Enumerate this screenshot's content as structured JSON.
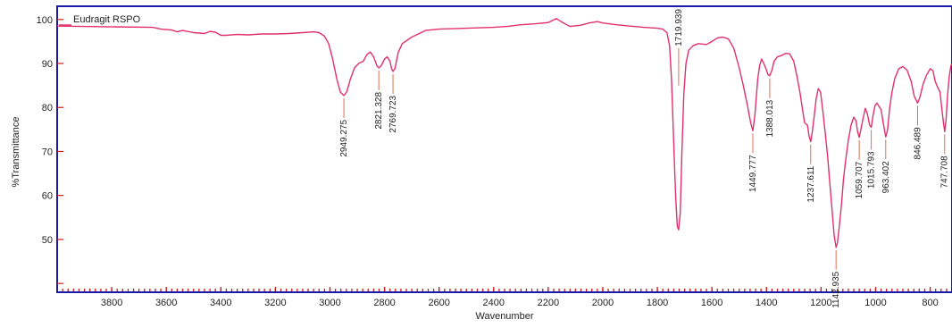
{
  "chart_data": {
    "type": "line",
    "title": "",
    "xlabel": "Wavenumber",
    "ylabel": "%Transmittance",
    "xlim": [
      4000,
      720
    ],
    "ylim": [
      38,
      103
    ],
    "x_ticks": [
      3800,
      3600,
      3400,
      3200,
      3000,
      2800,
      2600,
      2400,
      2200,
      2000,
      1800,
      1600,
      1400,
      1200,
      1000,
      800
    ],
    "y_ticks": [
      50,
      60,
      70,
      80,
      90,
      100
    ],
    "grid": false,
    "legend": "top-left",
    "series": [
      {
        "name": "Eudragit RSPO",
        "color": "#e0306e",
        "points": [
          [
            4000,
            98.5
          ],
          [
            3990,
            98.5
          ],
          [
            3650,
            98.2
          ],
          [
            3620,
            97.8
          ],
          [
            3580,
            97.6
          ],
          [
            3560,
            97.2
          ],
          [
            3540,
            97.5
          ],
          [
            3500,
            97.0
          ],
          [
            3460,
            96.8
          ],
          [
            3440,
            97.3
          ],
          [
            3420,
            97.1
          ],
          [
            3400,
            96.4
          ],
          [
            3380,
            96.4
          ],
          [
            3340,
            96.6
          ],
          [
            3300,
            96.5
          ],
          [
            3250,
            96.7
          ],
          [
            3200,
            96.7
          ],
          [
            3150,
            96.8
          ],
          [
            3100,
            97.0
          ],
          [
            3060,
            97.2
          ],
          [
            3040,
            97.0
          ],
          [
            3020,
            96.2
          ],
          [
            3005,
            94.5
          ],
          [
            2990,
            91.0
          ],
          [
            2975,
            86.5
          ],
          [
            2962,
            83.5
          ],
          [
            2949,
            82.7
          ],
          [
            2938,
            83.6
          ],
          [
            2925,
            86.5
          ],
          [
            2910,
            89.0
          ],
          [
            2895,
            90.0
          ],
          [
            2878,
            90.5
          ],
          [
            2865,
            92.0
          ],
          [
            2852,
            92.6
          ],
          [
            2840,
            91.5
          ],
          [
            2828,
            89.5
          ],
          [
            2821,
            89.0
          ],
          [
            2812,
            89.5
          ],
          [
            2800,
            91.0
          ],
          [
            2790,
            91.5
          ],
          [
            2780,
            90.5
          ],
          [
            2774,
            88.8
          ],
          [
            2769,
            88.2
          ],
          [
            2762,
            88.8
          ],
          [
            2750,
            92.5
          ],
          [
            2735,
            94.5
          ],
          [
            2700,
            96.0
          ],
          [
            2650,
            97.5
          ],
          [
            2600,
            97.8
          ],
          [
            2550,
            97.9
          ],
          [
            2500,
            98.0
          ],
          [
            2450,
            98.1
          ],
          [
            2400,
            98.2
          ],
          [
            2350,
            98.4
          ],
          [
            2300,
            98.8
          ],
          [
            2250,
            99.0
          ],
          [
            2200,
            99.3
          ],
          [
            2170,
            100.2
          ],
          [
            2150,
            99.4
          ],
          [
            2120,
            98.4
          ],
          [
            2080,
            98.7
          ],
          [
            2050,
            99.2
          ],
          [
            2020,
            99.5
          ],
          [
            2000,
            99.2
          ],
          [
            1950,
            98.8
          ],
          [
            1900,
            98.5
          ],
          [
            1850,
            98.2
          ],
          [
            1800,
            98.0
          ],
          [
            1780,
            97.8
          ],
          [
            1765,
            97.0
          ],
          [
            1755,
            94.0
          ],
          [
            1748,
            86.0
          ],
          [
            1740,
            72.0
          ],
          [
            1733,
            60.0
          ],
          [
            1727,
            53.0
          ],
          [
            1722,
            52.2
          ],
          [
            1716,
            56.0
          ],
          [
            1710,
            70.0
          ],
          [
            1703,
            83.0
          ],
          [
            1695,
            90.0
          ],
          [
            1685,
            93.0
          ],
          [
            1670,
            94.0
          ],
          [
            1650,
            94.5
          ],
          [
            1620,
            94.3
          ],
          [
            1600,
            95.0
          ],
          [
            1580,
            95.8
          ],
          [
            1560,
            96.0
          ],
          [
            1540,
            95.6
          ],
          [
            1520,
            93.5
          ],
          [
            1500,
            89.0
          ],
          [
            1485,
            85.0
          ],
          [
            1470,
            80.5
          ],
          [
            1458,
            76.5
          ],
          [
            1450,
            74.7
          ],
          [
            1442,
            78.5
          ],
          [
            1432,
            86.5
          ],
          [
            1425,
            89.5
          ],
          [
            1418,
            91.0
          ],
          [
            1410,
            90.0
          ],
          [
            1400,
            88.5
          ],
          [
            1395,
            87.5
          ],
          [
            1388,
            87.2
          ],
          [
            1380,
            88.5
          ],
          [
            1372,
            90.5
          ],
          [
            1360,
            91.5
          ],
          [
            1345,
            91.8
          ],
          [
            1330,
            92.3
          ],
          [
            1315,
            92.2
          ],
          [
            1300,
            90.5
          ],
          [
            1288,
            87.0
          ],
          [
            1276,
            83.0
          ],
          [
            1268,
            79.5
          ],
          [
            1260,
            76.5
          ],
          [
            1250,
            76.0
          ],
          [
            1244,
            73.5
          ],
          [
            1238,
            72.2
          ],
          [
            1232,
            74.5
          ],
          [
            1225,
            78.0
          ],
          [
            1218,
            82.0
          ],
          [
            1210,
            84.3
          ],
          [
            1202,
            83.5
          ],
          [
            1193,
            79.0
          ],
          [
            1185,
            74.5
          ],
          [
            1176,
            69.0
          ],
          [
            1168,
            63.0
          ],
          [
            1160,
            57.0
          ],
          [
            1152,
            51.0
          ],
          [
            1145,
            48.2
          ],
          [
            1140,
            49.2
          ],
          [
            1133,
            53.0
          ],
          [
            1125,
            58.0
          ],
          [
            1118,
            63.5
          ],
          [
            1110,
            68.0
          ],
          [
            1100,
            72.5
          ],
          [
            1090,
            76.0
          ],
          [
            1080,
            77.8
          ],
          [
            1072,
            77.0
          ],
          [
            1066,
            74.5
          ],
          [
            1060,
            73.2
          ],
          [
            1054,
            75.0
          ],
          [
            1046,
            77.5
          ],
          [
            1038,
            79.8
          ],
          [
            1030,
            78.5
          ],
          [
            1022,
            76.0
          ],
          [
            1016,
            75.5
          ],
          [
            1010,
            78.0
          ],
          [
            1002,
            80.5
          ],
          [
            995,
            81.0
          ],
          [
            988,
            80.3
          ],
          [
            980,
            79.5
          ],
          [
            972,
            76.5
          ],
          [
            963,
            73.3
          ],
          [
            956,
            75.0
          ],
          [
            948,
            80.0
          ],
          [
            940,
            83.5
          ],
          [
            930,
            86.5
          ],
          [
            915,
            88.8
          ],
          [
            900,
            89.3
          ],
          [
            885,
            88.5
          ],
          [
            870,
            86.0
          ],
          [
            858,
            82.5
          ],
          [
            846,
            81.0
          ],
          [
            838,
            82.3
          ],
          [
            825,
            85.5
          ],
          [
            812,
            87.5
          ],
          [
            800,
            88.8
          ],
          [
            790,
            88.4
          ],
          [
            782,
            86.0
          ],
          [
            772,
            84.5
          ],
          [
            764,
            83.5
          ],
          [
            756,
            79.0
          ],
          [
            750,
            76.0
          ],
          [
            747,
            74.5
          ],
          [
            742,
            77.0
          ],
          [
            736,
            83.0
          ],
          [
            730,
            87.0
          ],
          [
            724,
            89.5
          ],
          [
            720,
            90.0
          ]
        ]
      }
    ],
    "peak_labels": [
      {
        "wavenumber": 2949,
        "label": "2949.275"
      },
      {
        "wavenumber": 2821,
        "label": "2821.328"
      },
      {
        "wavenumber": 2769,
        "label": "2769.723"
      },
      {
        "wavenumber": 1722,
        "label": "1719.939"
      },
      {
        "wavenumber": 1450,
        "label": "1449.777"
      },
      {
        "wavenumber": 1388,
        "label": "1388.013"
      },
      {
        "wavenumber": 1238,
        "label": "1237.611"
      },
      {
        "wavenumber": 1145,
        "label": "1142.935"
      },
      {
        "wavenumber": 1060,
        "label": "1059.707"
      },
      {
        "wavenumber": 1016,
        "label": "1015.793"
      },
      {
        "wavenumber": 963,
        "label": "963.402"
      },
      {
        "wavenumber": 846,
        "label": "846.489"
      },
      {
        "wavenumber": 747,
        "label": "747.708"
      }
    ]
  }
}
